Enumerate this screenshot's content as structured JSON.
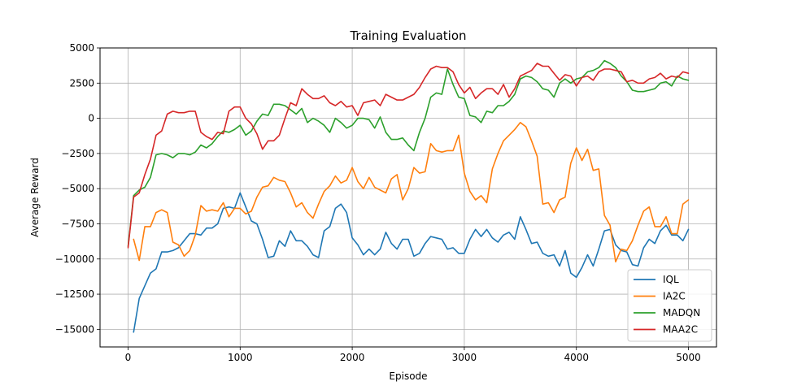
{
  "chart_data": {
    "type": "line",
    "title": "Training Evaluation",
    "xlabel": "Episode",
    "ylabel": "Average Reward",
    "xlim": [
      -250,
      5250
    ],
    "ylim": [
      -16250,
      5000
    ],
    "xticks": [
      0,
      1000,
      2000,
      3000,
      4000,
      5000
    ],
    "xtick_labels": [
      "0",
      "1000",
      "2000",
      "3000",
      "4000",
      "5000"
    ],
    "yticks": [
      5000,
      2500,
      0,
      -2500,
      -5000,
      -7500,
      -10000,
      -12500,
      -15000
    ],
    "ytick_labels": [
      "5000",
      "2500",
      "0",
      "−2500",
      "−5000",
      "−7500",
      "−10000",
      "−12500",
      "−15000"
    ],
    "grid": true,
    "legend_position": "lower-right",
    "series": [
      {
        "name": "IQL",
        "color": "#1f77b4",
        "x": [
          50,
          100,
          150,
          200,
          250,
          300,
          350,
          400,
          450,
          500,
          550,
          600,
          650,
          700,
          750,
          800,
          850,
          900,
          950,
          1000,
          1050,
          1100,
          1150,
          1200,
          1250,
          1300,
          1350,
          1400,
          1450,
          1500,
          1550,
          1600,
          1650,
          1700,
          1750,
          1800,
          1850,
          1900,
          1950,
          2000,
          2050,
          2100,
          2150,
          2200,
          2250,
          2300,
          2350,
          2400,
          2450,
          2500,
          2550,
          2600,
          2650,
          2700,
          2750,
          2800,
          2850,
          2900,
          2950,
          3000,
          3050,
          3100,
          3150,
          3200,
          3250,
          3300,
          3350,
          3400,
          3450,
          3500,
          3550,
          3600,
          3650,
          3700,
          3750,
          3800,
          3850,
          3900,
          3950,
          4000,
          4050,
          4100,
          4150,
          4200,
          4250,
          4300,
          4350,
          4400,
          4450,
          4500,
          4550,
          4600,
          4650,
          4700,
          4750,
          4800,
          4850,
          4900,
          4950,
          5000
        ],
        "values": [
          -15200,
          -12800,
          -11900,
          -11000,
          -10700,
          -9500,
          -9500,
          -9400,
          -9200,
          -8700,
          -8200,
          -8200,
          -8300,
          -7800,
          -7800,
          -7500,
          -6400,
          -6300,
          -6400,
          -5300,
          -6300,
          -7300,
          -7500,
          -8600,
          -9900,
          -9800,
          -8700,
          -9100,
          -8000,
          -8700,
          -8700,
          -9100,
          -9700,
          -9900,
          -8000,
          -7700,
          -6400,
          -6100,
          -6700,
          -8500,
          -9000,
          -9700,
          -9300,
          -9700,
          -9300,
          -8100,
          -8900,
          -9300,
          -8600,
          -8600,
          -9800,
          -9600,
          -8900,
          -8400,
          -8500,
          -8600,
          -9300,
          -9200,
          -9600,
          -9600,
          -8600,
          -7900,
          -8400,
          -7900,
          -8500,
          -8800,
          -8300,
          -8100,
          -8600,
          -7000,
          -7900,
          -8900,
          -8800,
          -9600,
          -9800,
          -9700,
          -10500,
          -9400,
          -11000,
          -11300,
          -10600,
          -9700,
          -10500,
          -9300,
          -8000,
          -7900,
          -9000,
          -9400,
          -9500,
          -10400,
          -10500,
          -9200,
          -8600,
          -8900,
          -8000,
          -7600,
          -8300,
          -8300,
          -8700,
          -7900
        ]
      },
      {
        "name": "IA2C",
        "color": "#ff7f0e",
        "x": [
          50,
          100,
          150,
          200,
          250,
          300,
          350,
          400,
          450,
          500,
          550,
          600,
          650,
          700,
          750,
          800,
          850,
          900,
          950,
          1000,
          1050,
          1100,
          1150,
          1200,
          1250,
          1300,
          1350,
          1400,
          1450,
          1500,
          1550,
          1600,
          1650,
          1700,
          1750,
          1800,
          1850,
          1900,
          1950,
          2000,
          2050,
          2100,
          2150,
          2200,
          2250,
          2300,
          2350,
          2400,
          2450,
          2500,
          2550,
          2600,
          2650,
          2700,
          2750,
          2800,
          2850,
          2900,
          2950,
          3000,
          3050,
          3100,
          3150,
          3200,
          3250,
          3300,
          3350,
          3400,
          3450,
          3500,
          3550,
          3600,
          3650,
          3700,
          3750,
          3800,
          3850,
          3900,
          3950,
          4000,
          4050,
          4100,
          4150,
          4200,
          4250,
          4300,
          4350,
          4400,
          4450,
          4500,
          4550,
          4600,
          4650,
          4700,
          4750,
          4800,
          4850,
          4900,
          4950,
          5000
        ],
        "values": [
          -8600,
          -10100,
          -7700,
          -7700,
          -6700,
          -6500,
          -6700,
          -8800,
          -9000,
          -9800,
          -9400,
          -8300,
          -6200,
          -6600,
          -6500,
          -6600,
          -6000,
          -7000,
          -6400,
          -6400,
          -6800,
          -6600,
          -5600,
          -4900,
          -4800,
          -4200,
          -4400,
          -4500,
          -5300,
          -6300,
          -6000,
          -6700,
          -7100,
          -6100,
          -5200,
          -4800,
          -4100,
          -4600,
          -4400,
          -3500,
          -4500,
          -5000,
          -4200,
          -4900,
          -5100,
          -5300,
          -4300,
          -4000,
          -5800,
          -5000,
          -3500,
          -3900,
          -3800,
          -1800,
          -2300,
          -2400,
          -2300,
          -2300,
          -1200,
          -3900,
          -5200,
          -5800,
          -5500,
          -6000,
          -3600,
          -2500,
          -1600,
          -1200,
          -800,
          -300,
          -600,
          -1600,
          -2700,
          -6100,
          -6000,
          -6700,
          -5800,
          -5600,
          -3200,
          -2100,
          -3000,
          -2200,
          -3700,
          -3600,
          -6900,
          -7600,
          -10200,
          -9300,
          -9400,
          -8700,
          -7600,
          -6600,
          -6300,
          -7700,
          -7700,
          -7000,
          -8200,
          -8200,
          -6100,
          -5800
        ]
      },
      {
        "name": "MADQN",
        "color": "#2ca02c",
        "x": [
          0,
          50,
          100,
          150,
          200,
          250,
          300,
          350,
          400,
          450,
          500,
          550,
          600,
          650,
          700,
          750,
          800,
          850,
          900,
          950,
          1000,
          1050,
          1100,
          1150,
          1200,
          1250,
          1300,
          1350,
          1400,
          1450,
          1500,
          1550,
          1600,
          1650,
          1700,
          1750,
          1800,
          1850,
          1900,
          1950,
          2000,
          2050,
          2100,
          2150,
          2200,
          2250,
          2300,
          2350,
          2400,
          2450,
          2500,
          2550,
          2600,
          2650,
          2700,
          2750,
          2800,
          2850,
          2900,
          2950,
          3000,
          3050,
          3100,
          3150,
          3200,
          3250,
          3300,
          3350,
          3400,
          3450,
          3500,
          3550,
          3600,
          3650,
          3700,
          3750,
          3800,
          3850,
          3900,
          3950,
          4000,
          4050,
          4100,
          4150,
          4200,
          4250,
          4300,
          4350,
          4400,
          4450,
          4500,
          4550,
          4600,
          4650,
          4700,
          4750,
          4800,
          4850,
          4900,
          4950,
          5000
        ],
        "values": [
          -9100,
          -5500,
          -5100,
          -4900,
          -4200,
          -2600,
          -2500,
          -2600,
          -2800,
          -2500,
          -2500,
          -2600,
          -2400,
          -1900,
          -2100,
          -1800,
          -1300,
          -900,
          -1000,
          -800,
          -500,
          -1200,
          -900,
          -200,
          300,
          200,
          1000,
          1000,
          900,
          600,
          300,
          700,
          -300,
          0,
          -200,
          -500,
          -1000,
          0,
          -300,
          -700,
          -500,
          0,
          0,
          -100,
          -700,
          100,
          -1000,
          -1500,
          -1500,
          -1400,
          -1900,
          -2300,
          -1000,
          0,
          1500,
          1800,
          1700,
          3500,
          2400,
          1500,
          1400,
          200,
          100,
          -300,
          500,
          400,
          900,
          900,
          1200,
          1700,
          2800,
          3000,
          2900,
          2600,
          2100,
          2000,
          1500,
          2500,
          2800,
          2500,
          2800,
          2900,
          3300,
          3400,
          3600,
          4100,
          3900,
          3600,
          3000,
          2600,
          2000,
          1900,
          1900,
          2000,
          2100,
          2500,
          2600,
          2300,
          3000,
          2800,
          2700
        ]
      },
      {
        "name": "MAA2C",
        "color": "#d62728",
        "x": [
          0,
          50,
          100,
          150,
          200,
          250,
          300,
          350,
          400,
          450,
          500,
          550,
          600,
          650,
          700,
          750,
          800,
          850,
          900,
          950,
          1000,
          1050,
          1100,
          1150,
          1200,
          1250,
          1300,
          1350,
          1400,
          1450,
          1500,
          1550,
          1600,
          1650,
          1700,
          1750,
          1800,
          1850,
          1900,
          1950,
          2000,
          2050,
          2100,
          2150,
          2200,
          2250,
          2300,
          2350,
          2400,
          2450,
          2500,
          2550,
          2600,
          2650,
          2700,
          2750,
          2800,
          2850,
          2900,
          2950,
          3000,
          3050,
          3100,
          3150,
          3200,
          3250,
          3300,
          3350,
          3400,
          3450,
          3500,
          3550,
          3600,
          3650,
          3700,
          3750,
          3800,
          3850,
          3900,
          3950,
          4000,
          4050,
          4100,
          4150,
          4200,
          4250,
          4300,
          4350,
          4400,
          4450,
          4500,
          4550,
          4600,
          4650,
          4700,
          4750,
          4800,
          4850,
          4900,
          4950,
          5000
        ],
        "values": [
          -9200,
          -5600,
          -5300,
          -4000,
          -2900,
          -1200,
          -900,
          300,
          500,
          400,
          400,
          500,
          500,
          -1000,
          -1300,
          -1500,
          -1000,
          -1100,
          500,
          800,
          800,
          0,
          -400,
          -1100,
          -2200,
          -1600,
          -1600,
          -1200,
          0,
          1100,
          900,
          2100,
          1700,
          1400,
          1400,
          1600,
          1100,
          900,
          1200,
          800,
          900,
          200,
          1100,
          1200,
          1300,
          900,
          1700,
          1500,
          1300,
          1300,
          1500,
          1700,
          2200,
          2900,
          3500,
          3700,
          3600,
          3600,
          3300,
          2400,
          1800,
          2200,
          1400,
          1800,
          2100,
          2100,
          1700,
          2400,
          1500,
          2100,
          3000,
          3200,
          3400,
          3900,
          3700,
          3700,
          3200,
          2700,
          3100,
          3000,
          2300,
          2900,
          3000,
          2700,
          3300,
          3500,
          3500,
          3400,
          3300,
          2600,
          2700,
          2500,
          2500,
          2800,
          2900,
          3200,
          2800,
          3000,
          2900,
          3300,
          3200
        ]
      }
    ]
  }
}
